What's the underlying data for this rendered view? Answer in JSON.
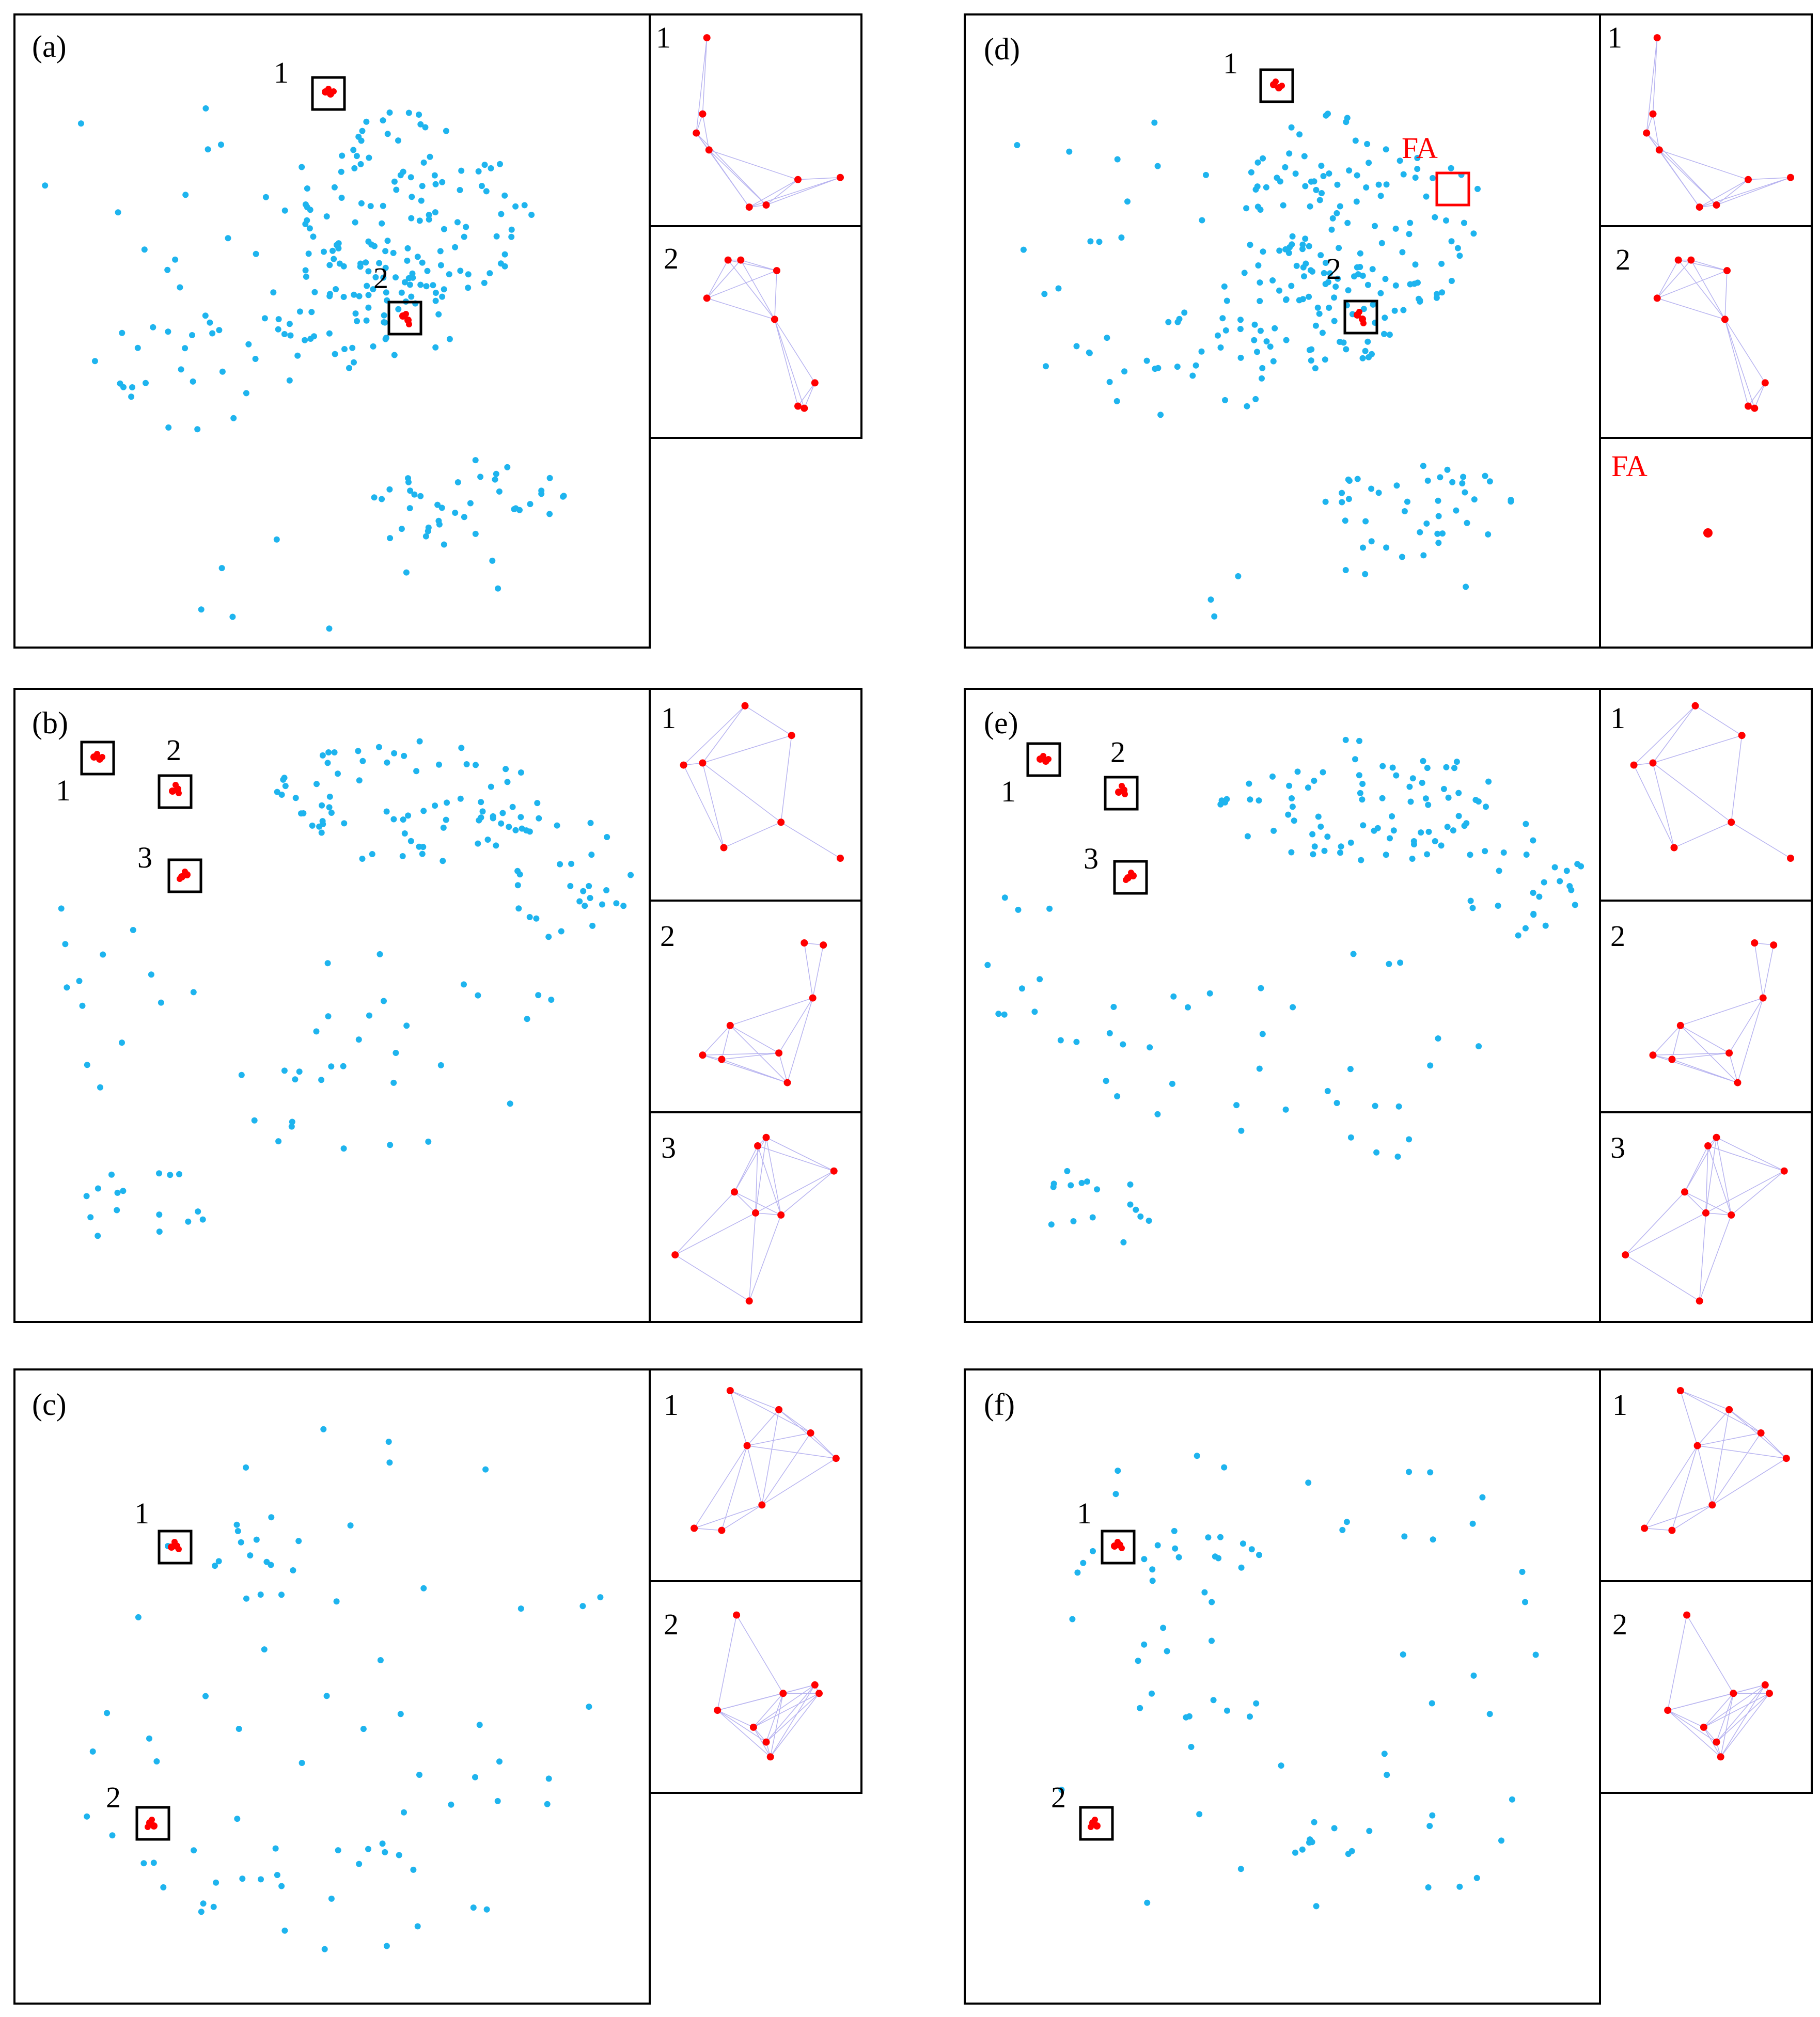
{
  "panels": [
    {
      "id": "a",
      "label": "(a)",
      "targets": [
        "1",
        "2"
      ],
      "fa": null,
      "insets": [
        {
          "label": "1"
        },
        {
          "label": "2"
        }
      ]
    },
    {
      "id": "b",
      "label": "(b)",
      "targets": [
        "1",
        "2",
        "3"
      ],
      "fa": null,
      "insets": [
        {
          "label": "1"
        },
        {
          "label": "2"
        },
        {
          "label": "3"
        }
      ]
    },
    {
      "id": "c",
      "label": "(c)",
      "targets": [
        "1",
        "2"
      ],
      "fa": null,
      "insets": [
        {
          "label": "1"
        },
        {
          "label": "2"
        }
      ]
    },
    {
      "id": "d",
      "label": "(d)",
      "targets": [
        "1",
        "2"
      ],
      "fa": "FA",
      "insets": [
        {
          "label": "1"
        },
        {
          "label": "2"
        },
        {
          "label": "FA"
        }
      ]
    },
    {
      "id": "e",
      "label": "(e)",
      "targets": [
        "1",
        "2",
        "3"
      ],
      "fa": null,
      "insets": [
        {
          "label": "1"
        },
        {
          "label": "2"
        },
        {
          "label": "3"
        }
      ]
    },
    {
      "id": "f",
      "label": "(f)",
      "targets": [
        "1",
        "2"
      ],
      "fa": null,
      "insets": [
        {
          "label": "1"
        },
        {
          "label": "2"
        }
      ]
    }
  ],
  "colors": {
    "background_point": "#1eb4ee",
    "target_point": "#ff0000",
    "target_box": "#000000",
    "false_alarm_box": "#ff0000",
    "inset_link": "#b8b4f0"
  }
}
